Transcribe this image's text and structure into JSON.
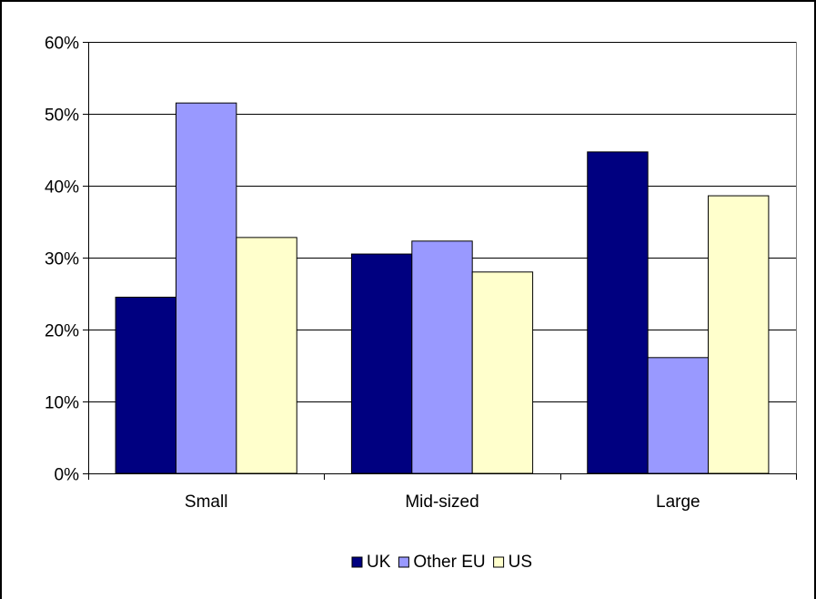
{
  "chart_data": {
    "type": "bar",
    "categories": [
      "Small",
      "Mid-sized",
      "Large"
    ],
    "series": [
      {
        "name": "UK",
        "values": [
          24.5,
          30.5,
          44.7
        ],
        "color": "#000080"
      },
      {
        "name": "Other EU",
        "values": [
          51.5,
          32.3,
          16.1
        ],
        "color": "#9999FF"
      },
      {
        "name": "US",
        "values": [
          32.8,
          28.0,
          38.6
        ],
        "color": "#FFFFCC"
      }
    ],
    "y_ticks": [
      "0%",
      "10%",
      "20%",
      "30%",
      "40%",
      "50%",
      "60%"
    ],
    "ylim": [
      0,
      60
    ],
    "y_unit": "%",
    "grid": true,
    "legend_position": "bottom",
    "title": "",
    "xlabel": "",
    "ylabel": ""
  }
}
